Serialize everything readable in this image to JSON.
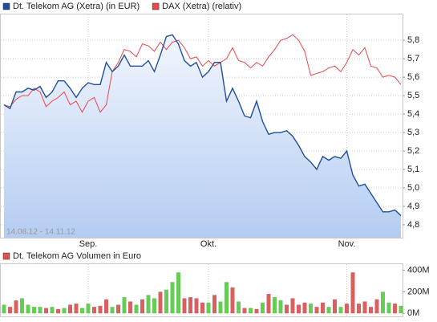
{
  "chart_data": [
    {
      "type": "line",
      "annotation": "14.08.12 - 14.11.12",
      "categories": [
        null,
        null,
        null,
        null,
        null,
        null,
        null,
        null,
        null,
        null,
        null,
        null,
        null,
        null,
        "Sep.",
        null,
        null,
        null,
        null,
        null,
        null,
        null,
        null,
        null,
        null,
        null,
        null,
        null,
        null,
        null,
        null,
        null,
        null,
        null,
        "Okt.",
        null,
        null,
        null,
        null,
        null,
        null,
        null,
        null,
        null,
        null,
        null,
        null,
        null,
        null,
        null,
        null,
        null,
        null,
        null,
        null,
        null,
        null,
        "Nov.",
        null,
        null,
        null,
        null,
        null,
        null,
        null,
        null,
        null
      ],
      "series": [
        {
          "name": "Dt. Telekom AG (Xetra) (in EUR)",
          "color": "#1f4e9c",
          "fill": true,
          "values": [
            5.45,
            5.43,
            5.52,
            5.52,
            5.54,
            5.53,
            5.55,
            5.49,
            5.52,
            5.58,
            5.58,
            5.54,
            5.49,
            5.54,
            5.57,
            5.56,
            5.56,
            5.68,
            5.63,
            5.66,
            5.72,
            5.66,
            5.66,
            5.66,
            5.69,
            5.63,
            5.72,
            5.82,
            5.83,
            5.78,
            5.69,
            5.66,
            5.68,
            5.6,
            5.63,
            5.68,
            5.68,
            5.47,
            5.54,
            5.47,
            5.39,
            5.38,
            5.47,
            5.36,
            5.29,
            5.3,
            5.3,
            5.31,
            5.28,
            5.23,
            5.17,
            5.14,
            5.1,
            5.17,
            5.15,
            5.17,
            5.16,
            5.2,
            5.07,
            5.01,
            5.02,
            4.97,
            4.92,
            4.87,
            4.87,
            4.88,
            4.85
          ]
        },
        {
          "name": "DAX (Xetra) (relativ)",
          "color": "#e8474c",
          "fill": false,
          "values": [
            5.45,
            5.44,
            5.48,
            5.5,
            5.5,
            5.54,
            5.52,
            5.44,
            5.47,
            5.49,
            5.52,
            5.45,
            5.47,
            5.41,
            5.47,
            5.49,
            5.41,
            5.45,
            5.63,
            5.68,
            5.75,
            5.74,
            5.71,
            5.78,
            5.77,
            5.74,
            5.79,
            5.75,
            5.79,
            5.8,
            5.76,
            5.7,
            5.71,
            5.66,
            5.69,
            5.66,
            5.68,
            5.7,
            5.76,
            5.69,
            5.68,
            5.65,
            5.68,
            5.66,
            5.71,
            5.75,
            5.8,
            5.81,
            5.83,
            5.8,
            5.74,
            5.61,
            5.62,
            5.63,
            5.65,
            5.66,
            5.63,
            5.68,
            5.75,
            5.72,
            5.76,
            5.66,
            5.65,
            5.6,
            5.61,
            5.6,
            5.56
          ]
        }
      ],
      "ylim": [
        4.73,
        5.94
      ],
      "yticks": [
        {
          "value": 4.8,
          "label": "4,8"
        },
        {
          "value": 4.9,
          "label": "4,9"
        },
        {
          "value": 5.0,
          "label": "5,0"
        },
        {
          "value": 5.1,
          "label": "5,1"
        },
        {
          "value": 5.2,
          "label": "5,2"
        },
        {
          "value": 5.3,
          "label": "5,3"
        },
        {
          "value": 5.4,
          "label": "5,4"
        },
        {
          "value": 5.5,
          "label": "5,5"
        },
        {
          "value": 5.6,
          "label": "5,6"
        },
        {
          "value": 5.7,
          "label": "5,7"
        },
        {
          "value": 5.8,
          "label": "5,8"
        }
      ],
      "grid": true
    },
    {
      "type": "bar",
      "series": [
        {
          "name": "Dt. Telekom AG Volumen in Euro",
          "color": "#d9534f",
          "colors": [
            "#66cc55",
            "#d96060",
            "#d96060",
            "#66cc55",
            "#66cc55",
            "#66cc55",
            "#66cc55",
            "#d96060",
            "#66cc55",
            "#d96060",
            "#66cc55",
            "#d96060",
            "#d96060",
            "#66cc55",
            "#66cc55",
            "#d96060",
            "#d96060",
            "#d96060",
            "#66cc55",
            "#d96060",
            "#66cc55",
            "#d96060",
            "#66cc55",
            "#d96060",
            "#66cc55",
            "#66cc55",
            "#d96060",
            "#66cc55",
            "#66cc55",
            "#66cc55",
            "#d96060",
            "#d96060",
            "#d96060",
            "#d96060",
            "#66cc55",
            "#d96060",
            "#66cc55",
            "#66cc55",
            "#d96060",
            "#66cc55",
            "#d96060",
            "#66cc55",
            "#d96060",
            "#66cc55",
            "#d96060",
            "#66cc55",
            "#66cc55",
            "#d96060",
            "#d96060",
            "#d96060",
            "#d96060",
            "#66cc55",
            "#d96060",
            "#d96060",
            "#66cc55",
            "#d96060",
            "#66cc55",
            "#d96060",
            "#d96060",
            "#d96060",
            "#d96060",
            "#d96060",
            "#d96060",
            "#66cc55",
            "#66cc55",
            "#d96060",
            "#66cc55"
          ],
          "values": [
            80,
            60,
            120,
            140,
            80,
            60,
            60,
            50,
            60,
            40,
            50,
            80,
            90,
            50,
            90,
            60,
            70,
            130,
            60,
            80,
            150,
            110,
            80,
            130,
            170,
            140,
            200,
            220,
            290,
            380,
            140,
            150,
            140,
            100,
            100,
            170,
            110,
            290,
            240,
            110,
            50,
            50,
            40,
            100,
            180,
            150,
            120,
            80,
            140,
            80,
            100,
            90,
            60,
            100,
            60,
            130,
            60,
            90,
            380,
            90,
            110,
            60,
            130,
            200,
            100,
            90,
            70
          ]
        }
      ],
      "ylim": [
        -28,
        456
      ],
      "yticks": [
        {
          "value": 0,
          "label": "0M"
        },
        {
          "value": 200,
          "label": "200M"
        },
        {
          "value": 400,
          "label": "400M"
        }
      ]
    }
  ]
}
